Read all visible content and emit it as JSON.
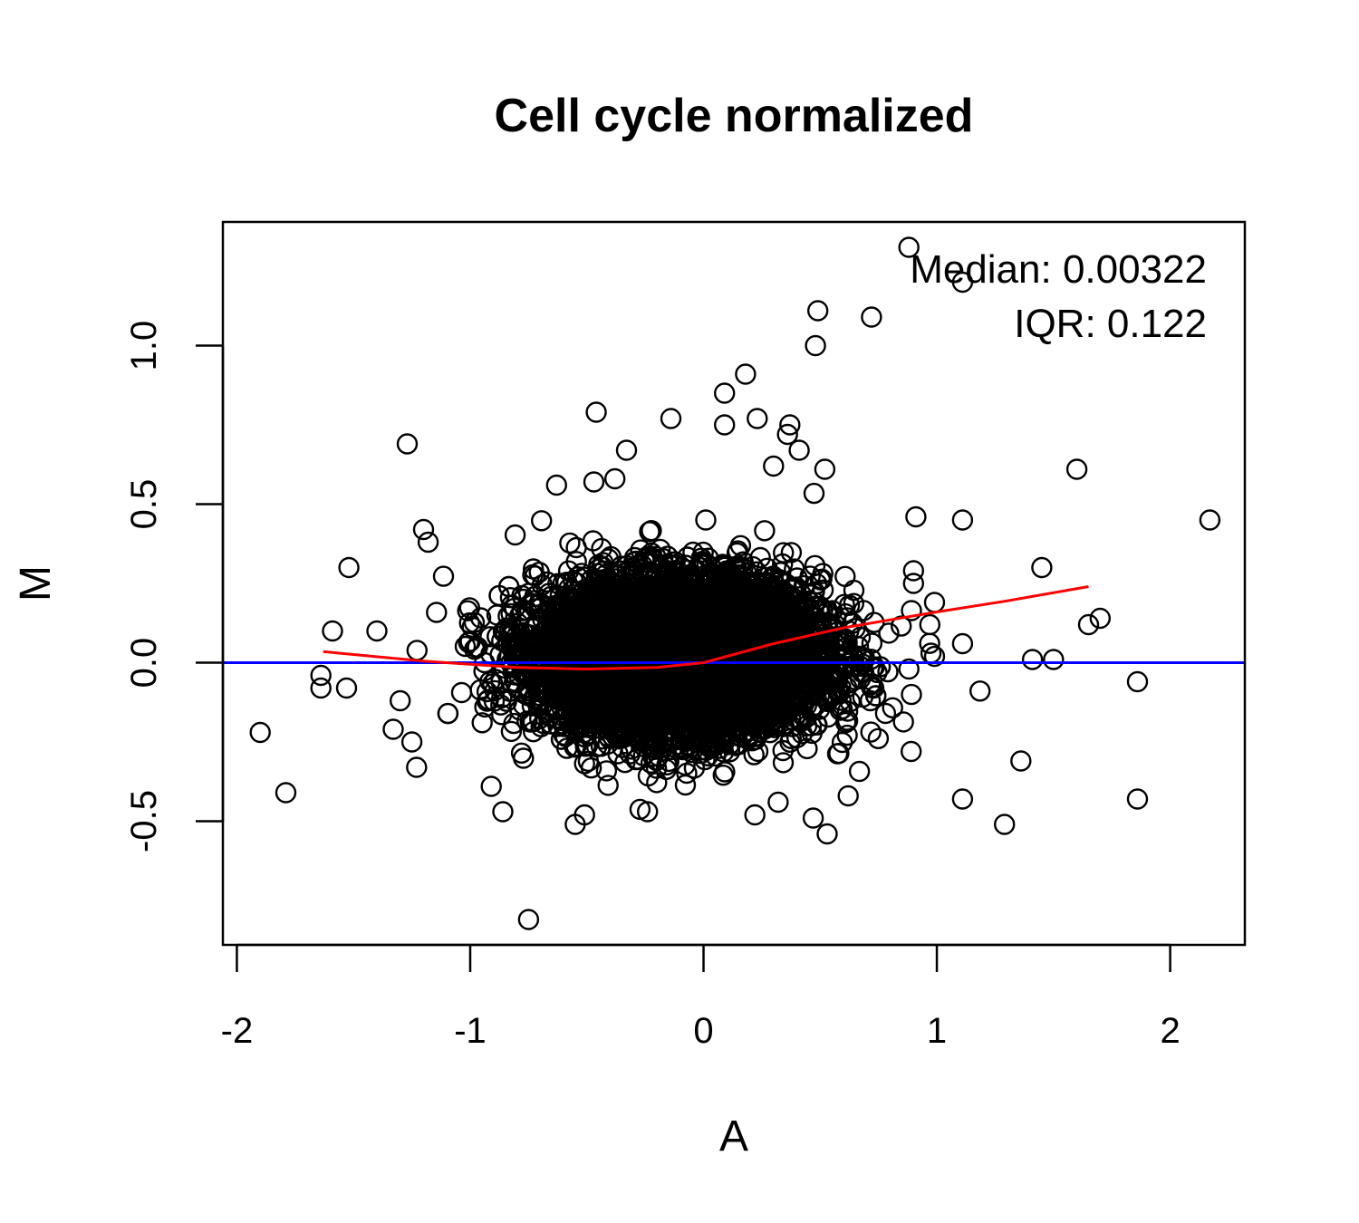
{
  "chart_data": {
    "type": "scatter",
    "title": "Cell cycle normalized",
    "xlabel": "A",
    "ylabel": "M",
    "xlim": [
      -2.06,
      2.32
    ],
    "ylim": [
      -0.89,
      1.39
    ],
    "x_ticks": [
      -2,
      -1,
      0,
      1,
      2
    ],
    "x_tick_labels": [
      "-2",
      "-1",
      "0",
      "1",
      "2"
    ],
    "y_ticks": [
      -0.5,
      0.0,
      0.5,
      1.0
    ],
    "y_tick_labels": [
      "-0.5",
      "0.0",
      "0.5",
      "1.0"
    ],
    "annotations": [
      "Median: 0.00322",
      "IQR: 0.122"
    ],
    "marker": "open-circle",
    "grid": false,
    "reference_line": {
      "y": 0,
      "color": "#0000ff"
    },
    "cluster": {
      "count": 7000,
      "center_x": -0.1,
      "center_y": 0.02,
      "sd_x": 0.3,
      "sd_y": 0.12
    },
    "outliers": [
      {
        "x": 0.88,
        "y": 1.31
      },
      {
        "x": 1.11,
        "y": 1.2
      },
      {
        "x": 0.49,
        "y": 1.11
      },
      {
        "x": 0.72,
        "y": 1.09
      },
      {
        "x": 0.48,
        "y": 1.0
      },
      {
        "x": 0.18,
        "y": 0.91
      },
      {
        "x": 0.09,
        "y": 0.85
      },
      {
        "x": -0.46,
        "y": 0.79
      },
      {
        "x": -0.14,
        "y": 0.77
      },
      {
        "x": 0.23,
        "y": 0.77
      },
      {
        "x": 0.09,
        "y": 0.75
      },
      {
        "x": 0.37,
        "y": 0.75
      },
      {
        "x": 0.36,
        "y": 0.72
      },
      {
        "x": -1.27,
        "y": 0.69
      },
      {
        "x": -0.33,
        "y": 0.67
      },
      {
        "x": 0.41,
        "y": 0.67
      },
      {
        "x": 0.3,
        "y": 0.62
      },
      {
        "x": 0.52,
        "y": 0.61
      },
      {
        "x": 1.6,
        "y": 0.61
      },
      {
        "x": -0.63,
        "y": 0.56
      },
      {
        "x": -0.38,
        "y": 0.58
      },
      {
        "x": -0.47,
        "y": 0.57
      },
      {
        "x": 0.91,
        "y": 0.46
      },
      {
        "x": 1.11,
        "y": 0.45
      },
      {
        "x": 2.17,
        "y": 0.45
      },
      {
        "x": -1.2,
        "y": 0.42
      },
      {
        "x": -1.18,
        "y": 0.38
      },
      {
        "x": -1.52,
        "y": 0.3
      },
      {
        "x": 1.45,
        "y": 0.3
      },
      {
        "x": -1.59,
        "y": 0.1
      },
      {
        "x": -1.4,
        "y": 0.1
      },
      {
        "x": 1.65,
        "y": 0.12
      },
      {
        "x": 1.7,
        "y": 0.14
      },
      {
        "x": 1.11,
        "y": 0.06
      },
      {
        "x": 1.41,
        "y": 0.01
      },
      {
        "x": 1.5,
        "y": 0.01
      },
      {
        "x": -1.64,
        "y": -0.04
      },
      {
        "x": -1.64,
        "y": -0.08
      },
      {
        "x": -1.53,
        "y": -0.08
      },
      {
        "x": 1.86,
        "y": -0.06
      },
      {
        "x": -1.9,
        "y": -0.22
      },
      {
        "x": -1.79,
        "y": -0.41
      },
      {
        "x": -1.33,
        "y": -0.21
      },
      {
        "x": -1.3,
        "y": -0.12
      },
      {
        "x": -1.25,
        "y": -0.25
      },
      {
        "x": -1.23,
        "y": -0.33
      },
      {
        "x": -0.91,
        "y": -0.39
      },
      {
        "x": -0.86,
        "y": -0.47
      },
      {
        "x": -0.75,
        "y": -0.81
      },
      {
        "x": -0.55,
        "y": -0.51
      },
      {
        "x": -0.51,
        "y": -0.48
      },
      {
        "x": -0.24,
        "y": -0.47
      },
      {
        "x": 0.22,
        "y": -0.48
      },
      {
        "x": 0.32,
        "y": -0.44
      },
      {
        "x": 0.47,
        "y": -0.49
      },
      {
        "x": 0.53,
        "y": -0.54
      },
      {
        "x": 0.62,
        "y": -0.42
      },
      {
        "x": 0.89,
        "y": -0.28
      },
      {
        "x": 1.11,
        "y": -0.43
      },
      {
        "x": 1.29,
        "y": -0.51
      },
      {
        "x": 1.36,
        "y": -0.31
      },
      {
        "x": 1.86,
        "y": -0.43
      },
      {
        "x": 0.78,
        "y": -0.16
      },
      {
        "x": 0.73,
        "y": -0.08
      },
      {
        "x": 0.9,
        "y": 0.29
      },
      {
        "x": 0.99,
        "y": 0.19
      },
      {
        "x": 0.97,
        "y": 0.12
      },
      {
        "x": 0.99,
        "y": 0.02
      },
      {
        "x": 0.88,
        "y": -0.02
      },
      {
        "x": 0.9,
        "y": 0.25
      }
    ],
    "loess": {
      "color": "#ff0000",
      "x": [
        -1.63,
        -1.2,
        -0.8,
        -0.5,
        -0.2,
        0.0,
        0.3,
        0.6,
        1.0,
        1.3,
        1.65
      ],
      "y": [
        0.035,
        0.005,
        -0.015,
        -0.02,
        -0.015,
        0.0,
        0.06,
        0.11,
        0.16,
        0.195,
        0.24
      ]
    }
  }
}
